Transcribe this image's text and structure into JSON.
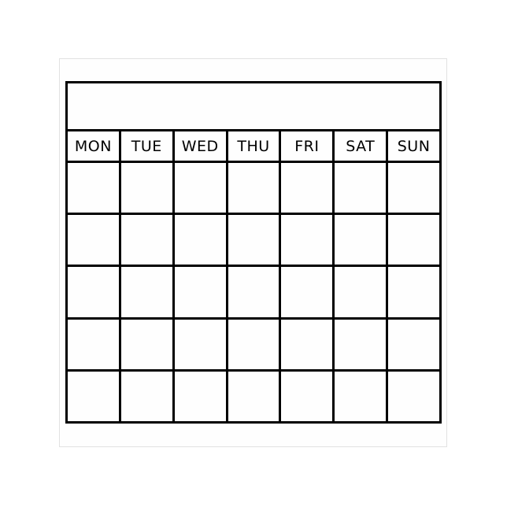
{
  "calendar": {
    "title": "",
    "days": [
      "MON",
      "TUE",
      "WED",
      "THU",
      "FRI",
      "SAT",
      "SUN"
    ],
    "weeks": 5
  }
}
